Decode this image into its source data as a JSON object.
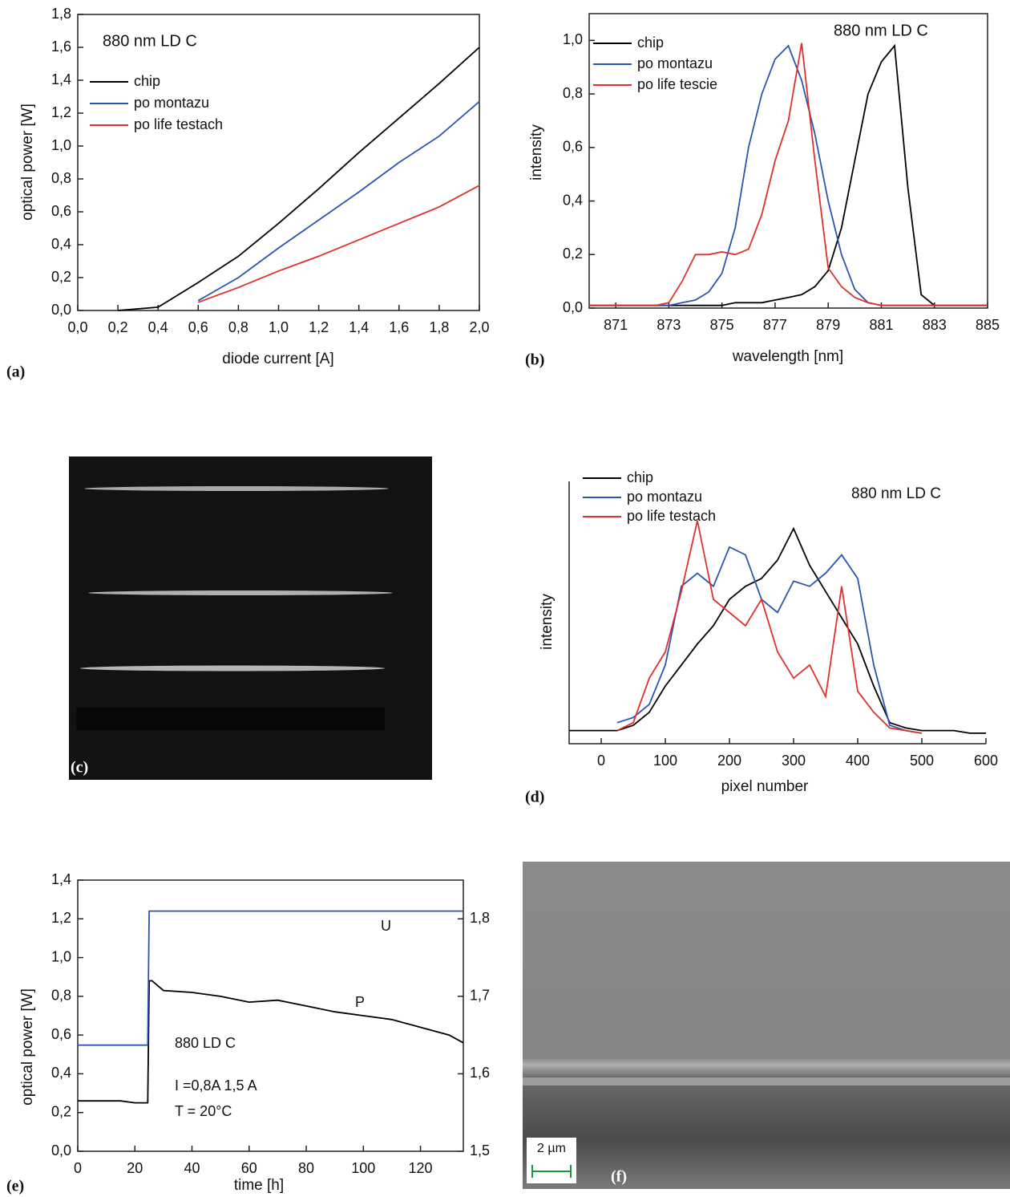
{
  "chart_data": [
    {
      "type": "line",
      "label": "(a)",
      "annotations": [
        "880 nm  LD  C"
      ],
      "x_label": "diode current  [A]",
      "y_label": "optical power  [W]",
      "x": [
        0,
        0.2,
        0.4,
        0.6,
        0.8,
        1.0,
        1.2,
        1.4,
        1.6,
        1.8,
        2.0
      ],
      "series": [
        {
          "name": "chip",
          "color": "#000000",
          "values": [
            null,
            0,
            0.02,
            0.17,
            0.33,
            0.53,
            0.74,
            0.96,
            1.17,
            1.38,
            1.6
          ]
        },
        {
          "name": "po montazu",
          "color": "#2a55b0",
          "values": [
            null,
            null,
            null,
            0.06,
            0.2,
            0.38,
            0.55,
            0.72,
            0.9,
            1.06,
            1.27
          ]
        },
        {
          "name": "po life testach",
          "color": "#e0302c",
          "values": [
            null,
            null,
            null,
            0.05,
            0.14,
            0.24,
            0.33,
            0.43,
            0.53,
            0.63,
            0.76
          ]
        }
      ],
      "xlim": [
        0,
        2.0
      ],
      "ylim": [
        0,
        1.8
      ],
      "xticks": [
        {
          "value": 0,
          "label": "0,0"
        },
        {
          "value": 0.2,
          "label": "0,2"
        },
        {
          "value": 0.4,
          "label": "0,4"
        },
        {
          "value": 0.6,
          "label": "0,6"
        },
        {
          "value": 0.8,
          "label": "0,8"
        },
        {
          "value": 1.0,
          "label": "1,0"
        },
        {
          "value": 1.2,
          "label": "1,2"
        },
        {
          "value": 1.4,
          "label": "1,4"
        },
        {
          "value": 1.6,
          "label": "1,6"
        },
        {
          "value": 1.8,
          "label": "1,8"
        },
        {
          "value": 2.0,
          "label": "2,0"
        }
      ],
      "yticks": [
        {
          "value": 0,
          "label": "0,0"
        },
        {
          "value": 0.2,
          "label": "0,2"
        },
        {
          "value": 0.4,
          "label": "0,4"
        },
        {
          "value": 0.6,
          "label": "0,6"
        },
        {
          "value": 0.8,
          "label": "0,8"
        },
        {
          "value": 1.0,
          "label": "1,0"
        },
        {
          "value": 1.2,
          "label": "1,2"
        },
        {
          "value": 1.4,
          "label": "1,4"
        },
        {
          "value": 1.6,
          "label": "1,6"
        },
        {
          "value": 1.8,
          "label": "1,8"
        }
      ]
    },
    {
      "type": "line",
      "label": "(b)",
      "annotations": [
        "880 nm  LD  C"
      ],
      "x_label": "wavelength  [nm]",
      "y_label": "intensity",
      "x": [
        870,
        870.5,
        871,
        871.5,
        872,
        872.5,
        873,
        873.5,
        874,
        874.5,
        875,
        875.5,
        876,
        876.5,
        877,
        877.5,
        878,
        878.5,
        879,
        879.5,
        880,
        880.5,
        881,
        881.5,
        882,
        882.5,
        883,
        883.5,
        884,
        884.5,
        885
      ],
      "series": [
        {
          "name": "chip",
          "color": "#000000",
          "values": [
            0.01,
            0.01,
            0.01,
            0.01,
            0.01,
            0.01,
            0.01,
            0.01,
            0.01,
            0.01,
            0.01,
            0.02,
            0.02,
            0.02,
            0.03,
            0.04,
            0.05,
            0.08,
            0.14,
            0.3,
            0.55,
            0.8,
            0.92,
            0.98,
            0.45,
            0.05,
            0.01,
            0.01,
            0.01,
            0.01,
            0.01
          ]
        },
        {
          "name": "po montazu",
          "color": "#2a55b0",
          "values": [
            0.01,
            0.01,
            0.01,
            0.01,
            0.01,
            0.01,
            0.01,
            0.02,
            0.03,
            0.06,
            0.13,
            0.3,
            0.6,
            0.8,
            0.93,
            0.98,
            0.85,
            0.65,
            0.4,
            0.2,
            0.07,
            0.02,
            0.01,
            0.01,
            0.01,
            0.01,
            0.01,
            0.01,
            0.01,
            0.01,
            0.01
          ]
        },
        {
          "name": "po life tescie",
          "color": "#e0302c",
          "values": [
            0.01,
            0.01,
            0.01,
            0.01,
            0.01,
            0.01,
            0.02,
            0.1,
            0.2,
            0.2,
            0.21,
            0.2,
            0.22,
            0.35,
            0.55,
            0.7,
            0.99,
            0.55,
            0.15,
            0.08,
            0.04,
            0.02,
            0.01,
            0.01,
            0.01,
            0.01,
            0.01,
            0.01,
            0.01,
            0.01,
            0.01
          ]
        }
      ],
      "xlim": [
        870,
        885
      ],
      "ylim": [
        0,
        1.1
      ],
      "xticks": [
        871,
        873,
        875,
        877,
        879,
        881,
        883,
        885
      ],
      "yticks": [
        {
          "value": 0,
          "label": "0,0"
        },
        {
          "value": 0.2,
          "label": "0,2"
        },
        {
          "value": 0.4,
          "label": "0,4"
        },
        {
          "value": 0.6,
          "label": "0,6"
        },
        {
          "value": 0.8,
          "label": "0,8"
        },
        {
          "value": 1.0,
          "label": "1,0"
        }
      ]
    },
    {
      "type": "line",
      "label": "(d)",
      "annotations": [
        "880 nm   LD    C"
      ],
      "x_label": "pixel number",
      "y_label": "intensity",
      "x": [
        -50,
        -25,
        0,
        25,
        50,
        75,
        100,
        125,
        150,
        175,
        200,
        225,
        250,
        275,
        300,
        325,
        350,
        375,
        400,
        425,
        450,
        475,
        500,
        525,
        550,
        575,
        600
      ],
      "series": [
        {
          "name": "chip",
          "color": "#000000",
          "values": [
            0.05,
            0.05,
            0.05,
            0.05,
            0.07,
            0.12,
            0.22,
            0.3,
            0.38,
            0.45,
            0.55,
            0.6,
            0.63,
            0.7,
            0.82,
            0.68,
            0.58,
            0.48,
            0.38,
            0.22,
            0.08,
            0.06,
            0.05,
            0.05,
            0.05,
            0.04,
            0.04
          ]
        },
        {
          "name": "po montazu",
          "color": "#2a55b0",
          "values": [
            null,
            null,
            null,
            0.08,
            0.1,
            0.15,
            0.3,
            0.6,
            0.65,
            0.6,
            0.75,
            0.72,
            0.55,
            0.5,
            0.62,
            0.6,
            0.65,
            0.72,
            0.63,
            0.3,
            0.07,
            0.05,
            0.04,
            null,
            null,
            null,
            null
          ]
        },
        {
          "name": "po life testach",
          "color": "#e0302c",
          "values": [
            null,
            null,
            null,
            0.05,
            0.08,
            0.25,
            0.35,
            0.58,
            0.85,
            0.55,
            0.5,
            0.45,
            0.55,
            0.35,
            0.25,
            0.3,
            0.18,
            0.6,
            0.2,
            0.12,
            0.06,
            0.05,
            0.04,
            null,
            null,
            null,
            null
          ]
        }
      ],
      "xlim": [
        -50,
        600
      ],
      "ylim": [
        0,
        1
      ],
      "xticks": [
        0,
        100,
        200,
        300,
        400,
        500,
        600
      ]
    },
    {
      "type": "line",
      "label": "(e)",
      "annotations": [
        "U",
        "P",
        "880 LD  C",
        "I =0,8A   1,5 A",
        "T = 20°C"
      ],
      "x_label": "time [h]",
      "y_label": "optical power  [W]",
      "x": [
        0,
        5,
        10,
        15,
        20,
        24.5,
        25,
        26,
        30,
        40,
        50,
        60,
        70,
        80,
        90,
        100,
        110,
        120,
        130,
        135
      ],
      "series": [
        {
          "color": "#000000",
          "values": [
            0.26,
            0.26,
            0.26,
            0.26,
            0.25,
            0.25,
            0.88,
            0.88,
            0.83,
            0.82,
            0.8,
            0.77,
            0.78,
            0.75,
            0.72,
            0.7,
            0.68,
            0.64,
            0.6,
            0.56
          ]
        },
        {
          "color": "#2a55b0",
          "axis": "y2",
          "values": [
            1.637,
            1.637,
            1.637,
            1.637,
            1.637,
            1.637,
            1.81,
            1.81,
            1.81,
            1.81,
            1.81,
            1.81,
            1.81,
            1.81,
            1.81,
            1.81,
            1.81,
            1.81,
            1.81,
            1.81
          ]
        }
      ],
      "xlim": [
        0,
        135
      ],
      "ylim": [
        0,
        1.4
      ],
      "y2lim": [
        1.5,
        1.85
      ],
      "xticks": [
        0,
        20,
        40,
        60,
        80,
        100,
        120
      ],
      "yticks": [
        {
          "value": 0,
          "label": "0,0"
        },
        {
          "value": 0.2,
          "label": "0,2"
        },
        {
          "value": 0.4,
          "label": "0,4"
        },
        {
          "value": 0.6,
          "label": "0,6"
        },
        {
          "value": 0.8,
          "label": "0,8"
        },
        {
          "value": 1.0,
          "label": "1,0"
        },
        {
          "value": 1.2,
          "label": "1,2"
        },
        {
          "value": 1.4,
          "label": "1,4"
        }
      ],
      "y2ticks": [
        {
          "value": 1.5,
          "label": "1,5"
        },
        {
          "value": 1.6,
          "label": "1,6"
        },
        {
          "value": 1.7,
          "label": "1,7"
        },
        {
          "value": 1.8,
          "label": "1,8"
        }
      ]
    }
  ],
  "images": [
    {
      "label": "(c)"
    },
    {
      "label": "(f)",
      "scale_bar": "2 µm"
    }
  ]
}
